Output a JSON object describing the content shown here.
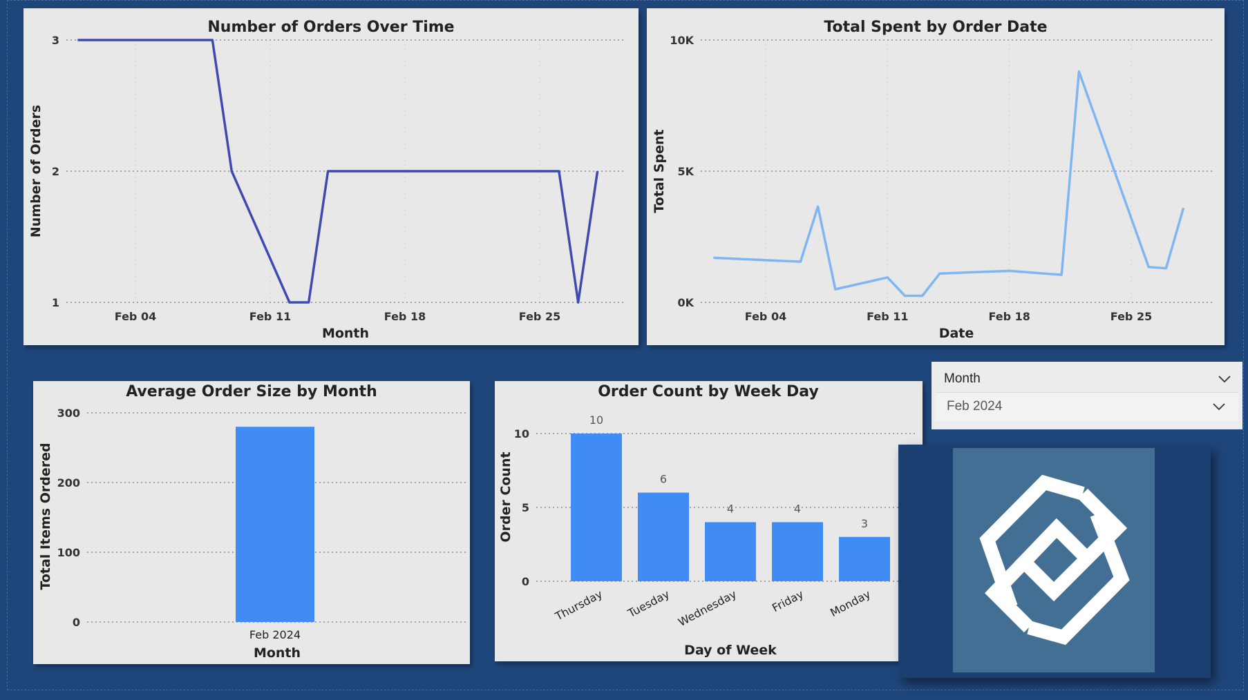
{
  "charts": {
    "orders": {
      "title": "Number of Orders Over Time",
      "xlabel": "Month",
      "ylabel": "Number of Orders",
      "xticks": [
        "Feb 04",
        "Feb 11",
        "Feb 18",
        "Feb 25"
      ],
      "yticks": [
        "1",
        "2",
        "3"
      ]
    },
    "spent": {
      "title": "Total Spent by Order Date",
      "xlabel": "Date",
      "ylabel": "Total Spent",
      "xticks": [
        "Feb 04",
        "Feb 11",
        "Feb 18",
        "Feb 25"
      ],
      "yticks": [
        "0K",
        "5K",
        "10K"
      ]
    },
    "avg": {
      "title": "Average Order Size by Month",
      "xlabel": "Month",
      "ylabel": "Total Items Ordered",
      "yticks": [
        "0",
        "100",
        "200",
        "300"
      ]
    },
    "weekday": {
      "title": "Order Count by Week Day",
      "xlabel": "Day of Week",
      "ylabel": "Order Count",
      "yticks": [
        "0",
        "5",
        "10"
      ]
    }
  },
  "slicer": {
    "label": "Month",
    "value": "Feb 2024"
  },
  "colors": {
    "background": "#1f467b",
    "panel": "#e8e8e8",
    "orders_line": "#3f4ab0",
    "spent_line": "#7fb6f2",
    "bar": "#408cf4",
    "logo_bg": "#426f93"
  },
  "icons": {
    "slicer_header": "chevron-down-icon",
    "slicer_dropdown": "chevron-down-icon",
    "logo": "interlocking-squares-logo"
  },
  "chart_data": [
    {
      "type": "line",
      "title": "Number of Orders Over Time",
      "xlabel": "Month",
      "ylabel": "Number of Orders",
      "ylim": [
        1,
        3
      ],
      "grid": true,
      "x": [
        "2024-02-01",
        "2024-02-08",
        "2024-02-09",
        "2024-02-12",
        "2024-02-13",
        "2024-02-14",
        "2024-02-26",
        "2024-02-27",
        "2024-02-28"
      ],
      "series": [
        {
          "values": [
            3,
            3,
            2,
            1,
            1,
            2,
            2,
            1,
            2
          ]
        }
      ]
    },
    {
      "type": "line",
      "title": "Total Spent by Order Date",
      "xlabel": "Date",
      "ylabel": "Total Spent",
      "ylim": [
        0,
        10000
      ],
      "grid": true,
      "x": [
        "2024-02-01",
        "2024-02-06",
        "2024-02-07",
        "2024-02-08",
        "2024-02-11",
        "2024-02-12",
        "2024-02-13",
        "2024-02-14",
        "2024-02-18",
        "2024-02-21",
        "2024-02-22",
        "2024-02-26",
        "2024-02-27",
        "2024-02-28"
      ],
      "series": [
        {
          "values": [
            1700,
            1550,
            3650,
            500,
            950,
            250,
            250,
            1100,
            1200,
            1050,
            8800,
            1350,
            1300,
            3600
          ]
        }
      ]
    },
    {
      "type": "bar",
      "title": "Average Order Size by Month",
      "xlabel": "Month",
      "ylabel": "Total Items Ordered",
      "ylim": [
        0,
        300
      ],
      "grid": true,
      "categories": [
        "Feb 2024"
      ],
      "values": [
        280
      ]
    },
    {
      "type": "bar",
      "title": "Order Count by Week Day",
      "xlabel": "Day of Week",
      "ylabel": "Order Count",
      "ylim": [
        0,
        10
      ],
      "grid": true,
      "categories": [
        "Thursday",
        "Tuesday",
        "Wednesday",
        "Friday",
        "Monday"
      ],
      "values": [
        10,
        6,
        4,
        4,
        3
      ]
    }
  ]
}
